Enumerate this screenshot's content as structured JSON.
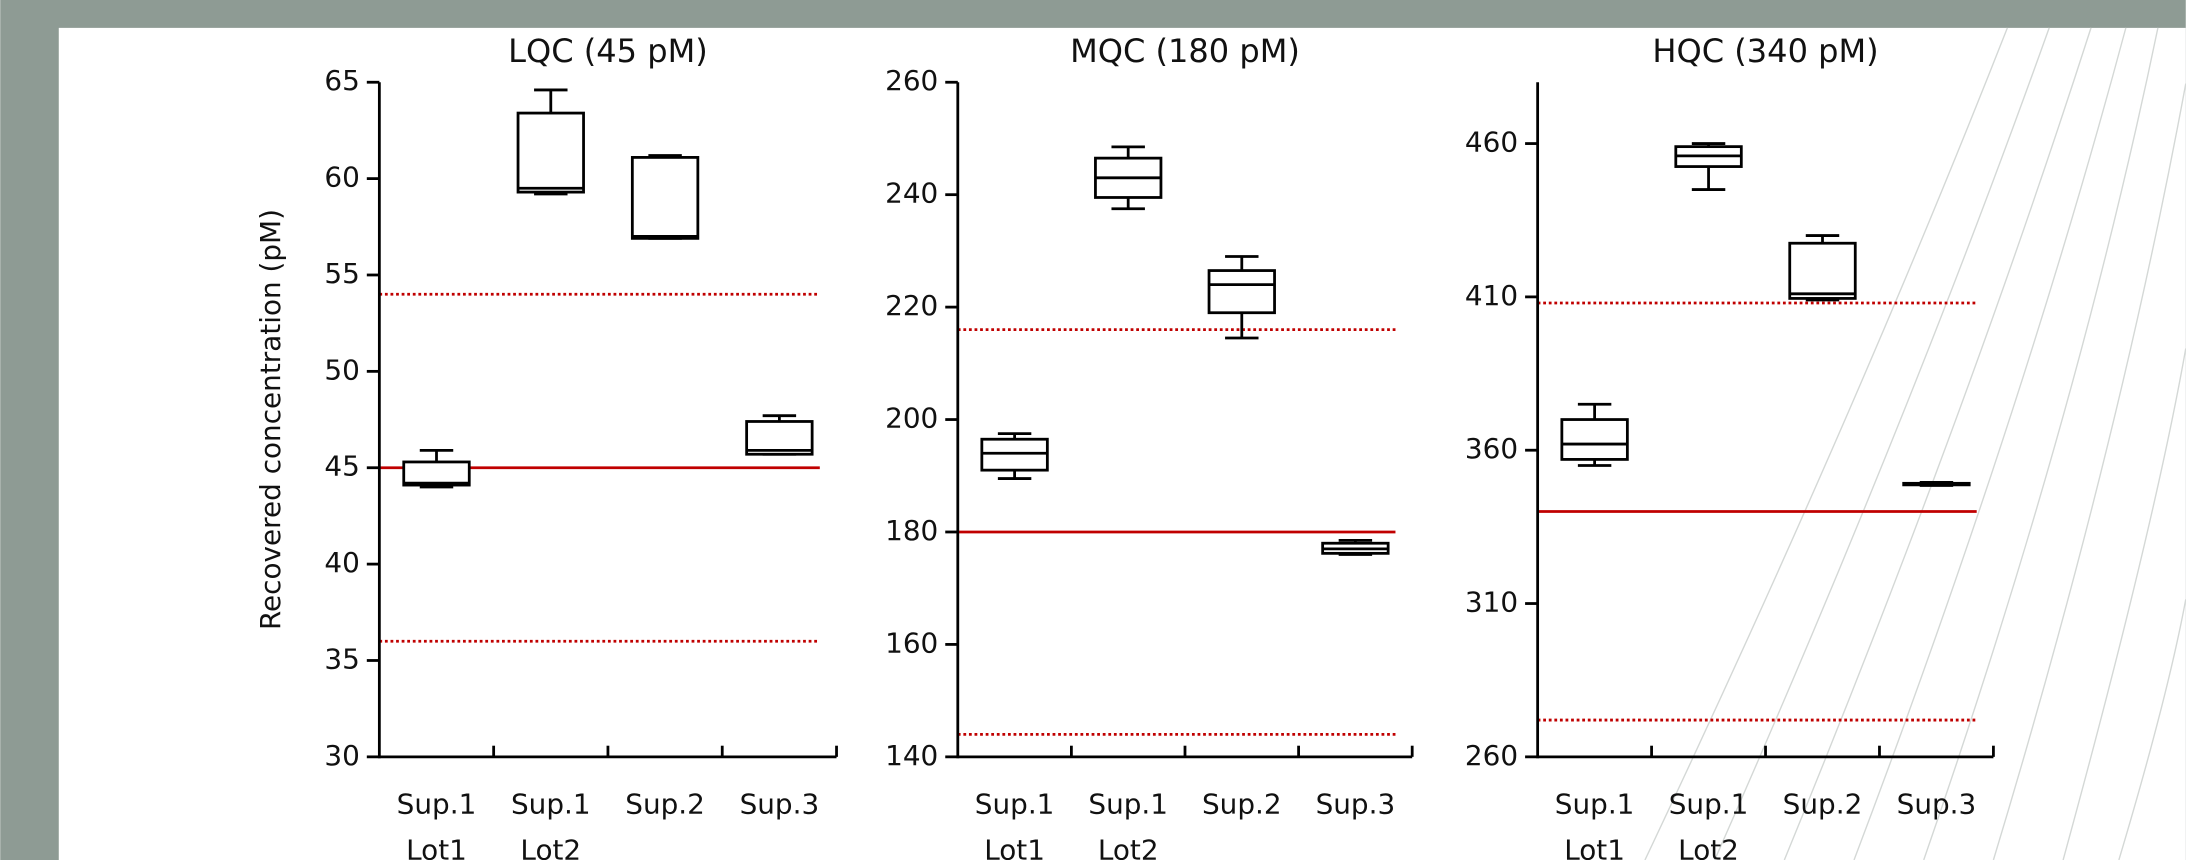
{
  "chart_data": [
    {
      "type": "box",
      "title": "LQC (45 pM)",
      "y_label": "Recovered concentration (pM)",
      "categories": [
        "Sup.1 Lot1",
        "Sup.1 Lot2",
        "Sup.2",
        "Sup.3"
      ],
      "boxes": [
        {
          "min": 44.0,
          "q1": 44.1,
          "median": 44.2,
          "q3": 45.3,
          "max": 45.9
        },
        {
          "min": 59.2,
          "q1": 59.3,
          "median": 59.5,
          "q3": 63.4,
          "max": 64.6
        },
        {
          "min": 56.9,
          "q1": 56.9,
          "median": 57.0,
          "q3": 61.1,
          "max": 61.2
        },
        {
          "min": 45.7,
          "q1": 45.7,
          "median": 45.9,
          "q3": 47.4,
          "max": 47.7
        }
      ],
      "reference_lines": [
        {
          "value": 45,
          "style": "solid"
        },
        {
          "value": 54,
          "style": "dotted"
        },
        {
          "value": 36,
          "style": "dotted"
        }
      ],
      "ylim": [
        30,
        65
      ],
      "yticks": [
        30,
        35,
        40,
        45,
        50,
        55,
        60,
        65
      ],
      "reference_color": "#c00000",
      "box_color": "#000000"
    },
    {
      "type": "box",
      "title": "MQC (180 pM)",
      "categories": [
        "Sup.1 Lot1",
        "Sup.1 Lot2",
        "Sup.2",
        "Sup.3"
      ],
      "boxes": [
        {
          "min": 189.5,
          "q1": 191,
          "median": 194,
          "q3": 196.5,
          "max": 197.5
        },
        {
          "min": 237.5,
          "q1": 239.5,
          "median": 243,
          "q3": 246.5,
          "max": 248.5
        },
        {
          "min": 214.5,
          "q1": 219,
          "median": 224,
          "q3": 226.5,
          "max": 229
        },
        {
          "min": 176,
          "q1": 176.2,
          "median": 177,
          "q3": 178,
          "max": 178.5
        }
      ],
      "reference_lines": [
        {
          "value": 180,
          "style": "solid"
        },
        {
          "value": 216,
          "style": "dotted"
        },
        {
          "value": 144,
          "style": "dotted"
        }
      ],
      "ylim": [
        140,
        260
      ],
      "yticks": [
        140,
        160,
        180,
        200,
        220,
        240,
        260
      ],
      "reference_color": "#c00000",
      "box_color": "#000000"
    },
    {
      "type": "box",
      "title": "HQC (340 pM)",
      "categories": [
        "Sup.1 Lot1",
        "Sup.1 Lot2",
        "Sup.2",
        "Sup.3"
      ],
      "boxes": [
        {
          "min": 355,
          "q1": 357,
          "median": 362,
          "q3": 370,
          "max": 375
        },
        {
          "min": 445,
          "q1": 452.5,
          "median": 456,
          "q3": 459,
          "max": 460
        },
        {
          "min": 409,
          "q1": 409.5,
          "median": 411,
          "q3": 427.5,
          "max": 430
        },
        {
          "min": 348.5,
          "q1": 348.7,
          "median": 349,
          "q3": 349.2,
          "max": 349.5
        }
      ],
      "reference_lines": [
        {
          "value": 340,
          "style": "solid"
        },
        {
          "value": 408,
          "style": "dotted"
        },
        {
          "value": 272,
          "style": "dotted"
        }
      ],
      "ylim": [
        260,
        480
      ],
      "yticks": [
        260,
        310,
        360,
        410,
        460
      ],
      "reference_color": "#c00000",
      "box_color": "#000000"
    }
  ]
}
